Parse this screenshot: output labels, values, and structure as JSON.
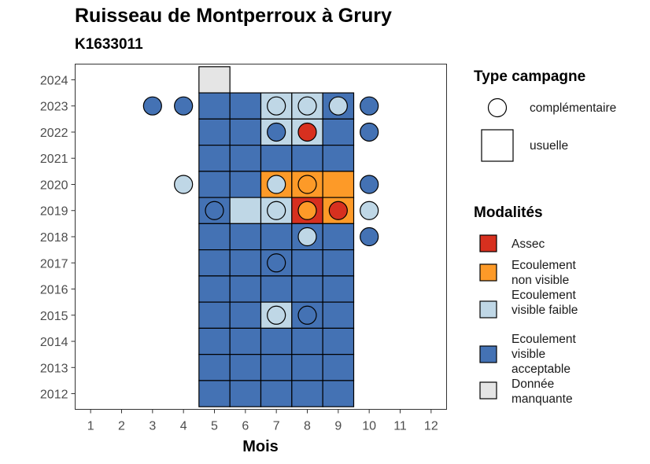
{
  "title": "Ruisseau de Montperroux à Grury",
  "subtitle": "K1633011",
  "legend": {
    "type_title": "Type campagne",
    "type_items": [
      {
        "label": "complémentaire",
        "shape": "circle"
      },
      {
        "label": "usuelle",
        "shape": "square"
      }
    ],
    "modalites_title": "Modalités",
    "modalites_items": [
      {
        "key": "assec",
        "label": "Assec",
        "color": "#d7301f"
      },
      {
        "key": "nonvisible",
        "label": "Ecoulement non visible",
        "color": "#fd9a28"
      },
      {
        "key": "faible",
        "label": "Ecoulement visible faible",
        "color": "#bfd7e6"
      },
      {
        "key": "acceptable",
        "label": "Ecoulement visible acceptable",
        "color": "#4472b4"
      },
      {
        "key": "manquante",
        "label": "Donnée manquante",
        "color": "#e5e5e5"
      }
    ]
  },
  "chart_data": {
    "type": "heatmap",
    "title": "Ruisseau de Montperroux à Grury",
    "subtitle": "K1633011",
    "xlabel": "Mois",
    "ylabel": "",
    "x_ticks": [
      1,
      2,
      3,
      4,
      5,
      6,
      7,
      8,
      9,
      10,
      11,
      12
    ],
    "y_ticks": [
      2012,
      2013,
      2014,
      2015,
      2016,
      2017,
      2018,
      2019,
      2020,
      2021,
      2022,
      2023,
      2024
    ],
    "xlim": [
      0.5,
      12.5
    ],
    "ylim": [
      2011.4,
      2024.6
    ],
    "grid": false,
    "legend_position": "right",
    "usuelle_tiles": [
      {
        "year": 2024,
        "month": 5,
        "mod": "manquante"
      },
      {
        "year": 2023,
        "month": 5,
        "mod": "acceptable"
      },
      {
        "year": 2023,
        "month": 6,
        "mod": "acceptable"
      },
      {
        "year": 2023,
        "month": 7,
        "mod": "faible"
      },
      {
        "year": 2023,
        "month": 8,
        "mod": "faible"
      },
      {
        "year": 2023,
        "month": 9,
        "mod": "acceptable"
      },
      {
        "year": 2022,
        "month": 5,
        "mod": "acceptable"
      },
      {
        "year": 2022,
        "month": 6,
        "mod": "acceptable"
      },
      {
        "year": 2022,
        "month": 7,
        "mod": "faible"
      },
      {
        "year": 2022,
        "month": 8,
        "mod": "faible"
      },
      {
        "year": 2022,
        "month": 9,
        "mod": "acceptable"
      },
      {
        "year": 2021,
        "month": 5,
        "mod": "acceptable"
      },
      {
        "year": 2021,
        "month": 6,
        "mod": "acceptable"
      },
      {
        "year": 2021,
        "month": 7,
        "mod": "acceptable"
      },
      {
        "year": 2021,
        "month": 8,
        "mod": "acceptable"
      },
      {
        "year": 2021,
        "month": 9,
        "mod": "acceptable"
      },
      {
        "year": 2020,
        "month": 5,
        "mod": "acceptable"
      },
      {
        "year": 2020,
        "month": 6,
        "mod": "acceptable"
      },
      {
        "year": 2020,
        "month": 7,
        "mod": "nonvisible"
      },
      {
        "year": 2020,
        "month": 8,
        "mod": "nonvisible"
      },
      {
        "year": 2020,
        "month": 9,
        "mod": "nonvisible"
      },
      {
        "year": 2019,
        "month": 5,
        "mod": "acceptable"
      },
      {
        "year": 2019,
        "month": 6,
        "mod": "faible"
      },
      {
        "year": 2019,
        "month": 7,
        "mod": "faible"
      },
      {
        "year": 2019,
        "month": 8,
        "mod": "assec"
      },
      {
        "year": 2019,
        "month": 9,
        "mod": "nonvisible"
      },
      {
        "year": 2018,
        "month": 5,
        "mod": "acceptable"
      },
      {
        "year": 2018,
        "month": 6,
        "mod": "acceptable"
      },
      {
        "year": 2018,
        "month": 7,
        "mod": "acceptable"
      },
      {
        "year": 2018,
        "month": 8,
        "mod": "acceptable"
      },
      {
        "year": 2018,
        "month": 9,
        "mod": "acceptable"
      },
      {
        "year": 2017,
        "month": 5,
        "mod": "acceptable"
      },
      {
        "year": 2017,
        "month": 6,
        "mod": "acceptable"
      },
      {
        "year": 2017,
        "month": 7,
        "mod": "acceptable"
      },
      {
        "year": 2017,
        "month": 8,
        "mod": "acceptable"
      },
      {
        "year": 2017,
        "month": 9,
        "mod": "acceptable"
      },
      {
        "year": 2016,
        "month": 5,
        "mod": "acceptable"
      },
      {
        "year": 2016,
        "month": 6,
        "mod": "acceptable"
      },
      {
        "year": 2016,
        "month": 7,
        "mod": "acceptable"
      },
      {
        "year": 2016,
        "month": 8,
        "mod": "acceptable"
      },
      {
        "year": 2016,
        "month": 9,
        "mod": "acceptable"
      },
      {
        "year": 2015,
        "month": 5,
        "mod": "acceptable"
      },
      {
        "year": 2015,
        "month": 6,
        "mod": "acceptable"
      },
      {
        "year": 2015,
        "month": 7,
        "mod": "faible"
      },
      {
        "year": 2015,
        "month": 8,
        "mod": "acceptable"
      },
      {
        "year": 2015,
        "month": 9,
        "mod": "acceptable"
      },
      {
        "year": 2014,
        "month": 5,
        "mod": "acceptable"
      },
      {
        "year": 2014,
        "month": 6,
        "mod": "acceptable"
      },
      {
        "year": 2014,
        "month": 7,
        "mod": "acceptable"
      },
      {
        "year": 2014,
        "month": 8,
        "mod": "acceptable"
      },
      {
        "year": 2014,
        "month": 9,
        "mod": "acceptable"
      },
      {
        "year": 2013,
        "month": 5,
        "mod": "acceptable"
      },
      {
        "year": 2013,
        "month": 6,
        "mod": "acceptable"
      },
      {
        "year": 2013,
        "month": 7,
        "mod": "acceptable"
      },
      {
        "year": 2013,
        "month": 8,
        "mod": "acceptable"
      },
      {
        "year": 2013,
        "month": 9,
        "mod": "acceptable"
      },
      {
        "year": 2012,
        "month": 5,
        "mod": "acceptable"
      },
      {
        "year": 2012,
        "month": 6,
        "mod": "acceptable"
      },
      {
        "year": 2012,
        "month": 7,
        "mod": "acceptable"
      },
      {
        "year": 2012,
        "month": 8,
        "mod": "acceptable"
      },
      {
        "year": 2012,
        "month": 9,
        "mod": "acceptable"
      }
    ],
    "complementaire_points": [
      {
        "year": 2023,
        "month": 3,
        "mod": "acceptable"
      },
      {
        "year": 2023,
        "month": 4,
        "mod": "acceptable"
      },
      {
        "year": 2023,
        "month": 7,
        "mod": "faible"
      },
      {
        "year": 2023,
        "month": 8,
        "mod": "faible"
      },
      {
        "year": 2023,
        "month": 9,
        "mod": "faible"
      },
      {
        "year": 2023,
        "month": 10,
        "mod": "acceptable"
      },
      {
        "year": 2022,
        "month": 7,
        "mod": "acceptable"
      },
      {
        "year": 2022,
        "month": 8,
        "mod": "assec"
      },
      {
        "year": 2022,
        "month": 10,
        "mod": "acceptable"
      },
      {
        "year": 2020,
        "month": 4,
        "mod": "faible"
      },
      {
        "year": 2020,
        "month": 7,
        "mod": "faible"
      },
      {
        "year": 2020,
        "month": 8,
        "mod": "nonvisible"
      },
      {
        "year": 2020,
        "month": 10,
        "mod": "acceptable"
      },
      {
        "year": 2019,
        "month": 5,
        "mod": "acceptable"
      },
      {
        "year": 2019,
        "month": 7,
        "mod": "faible"
      },
      {
        "year": 2019,
        "month": 8,
        "mod": "nonvisible"
      },
      {
        "year": 2019,
        "month": 9,
        "mod": "assec"
      },
      {
        "year": 2019,
        "month": 10,
        "mod": "faible"
      },
      {
        "year": 2018,
        "month": 8,
        "mod": "faible"
      },
      {
        "year": 2018,
        "month": 10,
        "mod": "acceptable"
      },
      {
        "year": 2017,
        "month": 7,
        "mod": "acceptable"
      },
      {
        "year": 2015,
        "month": 7,
        "mod": "faible"
      },
      {
        "year": 2015,
        "month": 8,
        "mod": "acceptable"
      }
    ]
  }
}
